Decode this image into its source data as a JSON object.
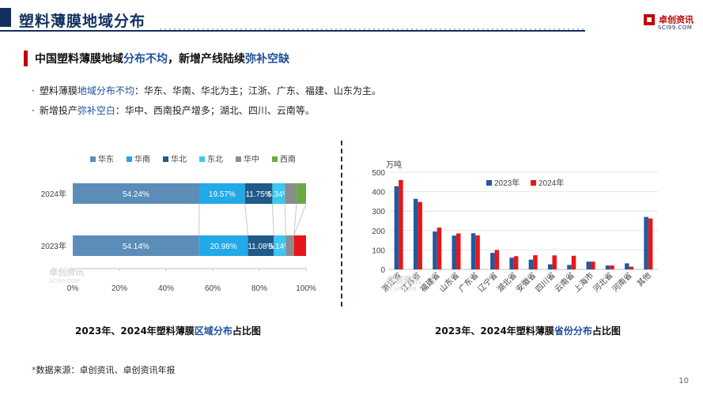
{
  "header": {
    "title": "塑料薄膜地域分布"
  },
  "logo": {
    "name": "卓创资讯",
    "url": "SCI99.COM"
  },
  "subtitle": {
    "prefix": "中国塑料薄膜地域",
    "hl1": "分布不均",
    "mid": "，新增产线陆续",
    "hl2": "弥补空缺"
  },
  "bullets": [
    {
      "dot": "·",
      "prefix": "塑料薄膜",
      "hl": "地域分布不均",
      "suffix": "：华东、华南、华北为主；江浙、广东、福建、山东为主。"
    },
    {
      "dot": "·",
      "prefix": "新增投产",
      "hl": "弥补空白",
      "suffix": "：华中、西南投产增多；湖北、四川、云南等。"
    }
  ],
  "watermark": {
    "name": "卓创资讯",
    "url": "SCI99.COM"
  },
  "captions": {
    "left": {
      "prefix": "2023年、2024年塑料薄膜",
      "hl": "区域分布",
      "suffix": "占比图"
    },
    "right": {
      "prefix": "2023年、2024年塑料薄膜",
      "hl": "省份分布",
      "suffix": "占比图"
    }
  },
  "footnote": {
    "star": "*",
    "text": "数据来源：卓创资讯、卓创资讯年报"
  },
  "page_number": "10",
  "chart_data": [
    {
      "type": "bar",
      "orientation": "horizontal",
      "stacked": true,
      "categories": [
        "2024年",
        "2023年"
      ],
      "series": [
        {
          "name": "华东",
          "color": "#5b8db8",
          "values": [
            54.24,
            54.14
          ],
          "labels": [
            "54.24%",
            "54.14%"
          ]
        },
        {
          "name": "华南",
          "color": "#21a9e8",
          "values": [
            19.57,
            20.98
          ],
          "labels": [
            "19.57%",
            "20.98%"
          ]
        },
        {
          "name": "华北",
          "color": "#1f5a8a",
          "values": [
            11.75,
            11.08
          ],
          "labels": [
            "11.75%",
            "11.08%"
          ]
        },
        {
          "name": "东北",
          "color": "#3cc6f2",
          "values": [
            5.34,
            5.14
          ],
          "labels": [
            "5.34%",
            "5.14%"
          ]
        },
        {
          "name": "华中",
          "color": "#8c8c8c",
          "values": [
            5.0,
            3.5
          ],
          "labels": [
            "",
            ""
          ]
        },
        {
          "name": "西南",
          "color": "#6aaa45",
          "values": [
            4.1,
            0
          ],
          "labels": [
            "",
            ""
          ]
        },
        {
          "name": "",
          "color": "#e8161b",
          "values": [
            0,
            5.16
          ],
          "labels": [
            "",
            ""
          ]
        }
      ],
      "xlim": [
        0,
        100
      ],
      "xticks": [
        "0%",
        "20%",
        "40%",
        "60%",
        "80%",
        "100%"
      ],
      "legend": "top",
      "grid": false
    },
    {
      "type": "bar",
      "categories": [
        "浙江省",
        "江苏省",
        "福建省",
        "山东省",
        "广东省",
        "辽宁省",
        "湖北省",
        "安徽省",
        "四川省",
        "云南省",
        "上海市",
        "河北省",
        "河南省",
        "其他"
      ],
      "series": [
        {
          "name": "2023年",
          "color": "#1f5a9e",
          "values": [
            428,
            363,
            195,
            174,
            186,
            85,
            60,
            50,
            26,
            23,
            40,
            20,
            31,
            270
          ]
        },
        {
          "name": "2024年",
          "color": "#e8161b",
          "values": [
            460,
            347,
            215,
            185,
            175,
            100,
            68,
            73,
            72,
            70,
            40,
            20,
            14,
            262
          ]
        }
      ],
      "ylabel": "万吨",
      "ylim": [
        0,
        500
      ],
      "yticks": [
        "0",
        "100",
        "200",
        "300",
        "400",
        "500"
      ],
      "legend": "top-center",
      "grid": true
    }
  ]
}
